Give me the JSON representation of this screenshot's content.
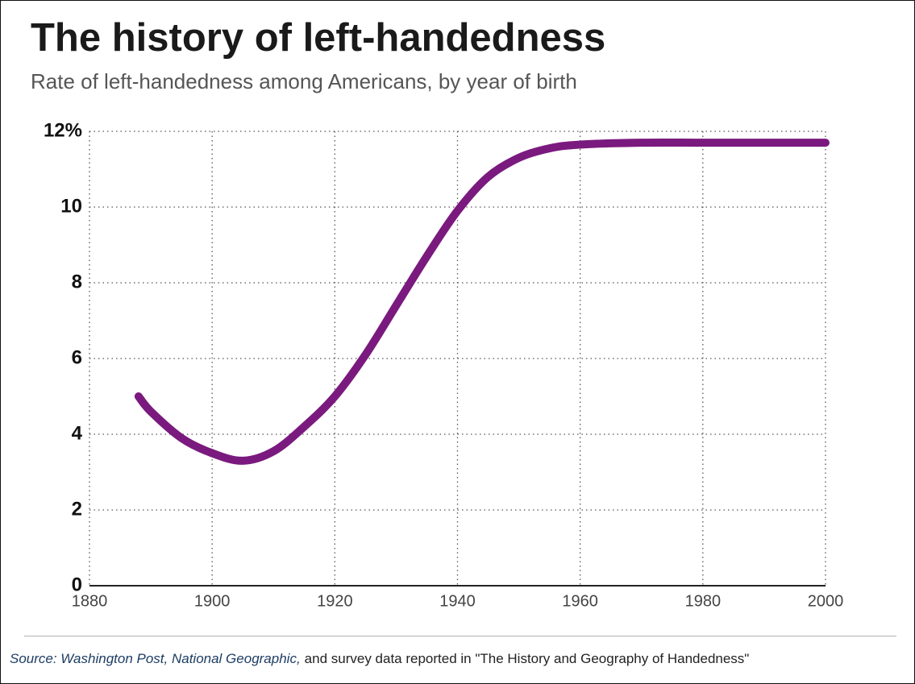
{
  "chart_data": {
    "type": "line",
    "title": "The history of left-handedness",
    "subtitle": "Rate of left-handedness among Americans, by year of birth",
    "x": [
      1888,
      1890,
      1895,
      1900,
      1905,
      1910,
      1915,
      1920,
      1925,
      1930,
      1935,
      1940,
      1945,
      1950,
      1955,
      1960,
      1970,
      1980,
      1990,
      2000
    ],
    "series": [
      {
        "color": "#7a1a7e",
        "values": [
          5.0,
          4.6,
          3.9,
          3.5,
          3.3,
          3.55,
          4.2,
          5.0,
          6.1,
          7.4,
          8.7,
          9.9,
          10.8,
          11.3,
          11.55,
          11.65,
          11.7,
          11.7,
          11.7,
          11.7
        ]
      }
    ],
    "xlim": [
      1880,
      2000
    ],
    "xticks": [
      1880,
      1900,
      1920,
      1940,
      1960,
      1980,
      2000
    ],
    "ylim": [
      0,
      12
    ],
    "yticks": [
      0,
      2,
      4,
      6,
      8,
      10,
      {
        "value": 12,
        "label": "12%"
      }
    ],
    "grid": true,
    "source": [
      "Source: Washington Post, National Geographic,",
      "and survey data reported in \"The History and Geography of Handedness\""
    ]
  }
}
